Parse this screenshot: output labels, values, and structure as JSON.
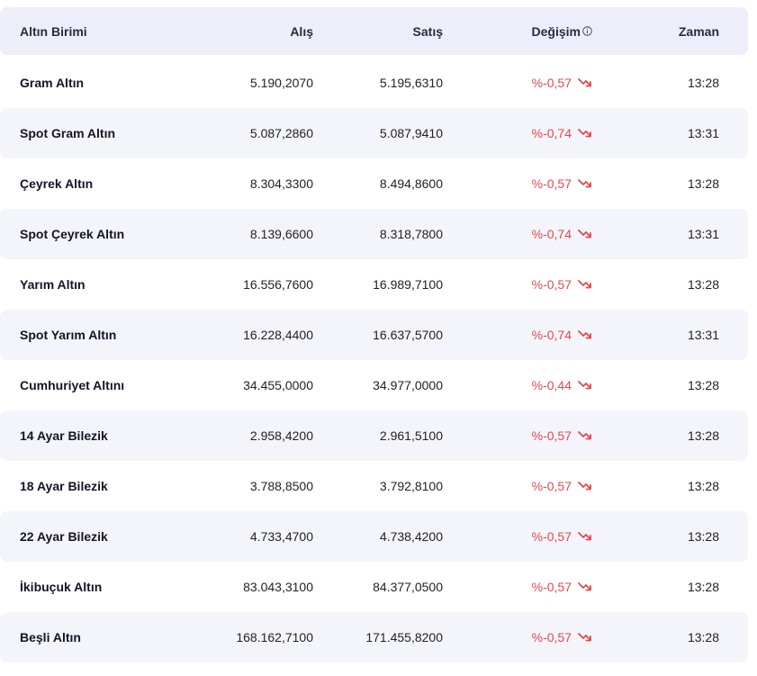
{
  "table": {
    "headers": {
      "name": "Altın Birimi",
      "alis": "Alış",
      "satis": "Satış",
      "degisim": "Değişim",
      "zaman": "Zaman"
    },
    "rows": [
      {
        "name": "Gram Altın",
        "alis": "5.190,2070",
        "satis": "5.195,6310",
        "degisim": "%-0,57",
        "zaman": "13:28"
      },
      {
        "name": "Spot Gram Altın",
        "alis": "5.087,2860",
        "satis": "5.087,9410",
        "degisim": "%-0,74",
        "zaman": "13:31"
      },
      {
        "name": "Çeyrek Altın",
        "alis": "8.304,3300",
        "satis": "8.494,8600",
        "degisim": "%-0,57",
        "zaman": "13:28"
      },
      {
        "name": "Spot Çeyrek Altın",
        "alis": "8.139,6600",
        "satis": "8.318,7800",
        "degisim": "%-0,74",
        "zaman": "13:31"
      },
      {
        "name": "Yarım Altın",
        "alis": "16.556,7600",
        "satis": "16.989,7100",
        "degisim": "%-0,57",
        "zaman": "13:28"
      },
      {
        "name": "Spot Yarım Altın",
        "alis": "16.228,4400",
        "satis": "16.637,5700",
        "degisim": "%-0,74",
        "zaman": "13:31"
      },
      {
        "name": "Cumhuriyet Altını",
        "alis": "34.455,0000",
        "satis": "34.977,0000",
        "degisim": "%-0,44",
        "zaman": "13:28"
      },
      {
        "name": "14 Ayar Bilezik",
        "alis": "2.958,4200",
        "satis": "2.961,5100",
        "degisim": "%-0,57",
        "zaman": "13:28"
      },
      {
        "name": "18 Ayar Bilezik",
        "alis": "3.788,8500",
        "satis": "3.792,8100",
        "degisim": "%-0,57",
        "zaman": "13:28"
      },
      {
        "name": "22 Ayar Bilezik",
        "alis": "4.733,4700",
        "satis": "4.738,4200",
        "degisim": "%-0,57",
        "zaman": "13:28"
      },
      {
        "name": "İkibuçuk Altın",
        "alis": "83.043,3100",
        "satis": "84.377,0500",
        "degisim": "%-0,57",
        "zaman": "13:28"
      },
      {
        "name": "Beşli Altın",
        "alis": "168.162,7100",
        "satis": "171.455,8200",
        "degisim": "%-0,57",
        "zaman": "13:28"
      }
    ]
  },
  "colors": {
    "header_bg": "#eeeefb",
    "alt_row_bg": "#f4f4fb",
    "negative": "#e5484d"
  },
  "icons": {
    "info": "info-icon",
    "trend": "trend-down-icon"
  }
}
